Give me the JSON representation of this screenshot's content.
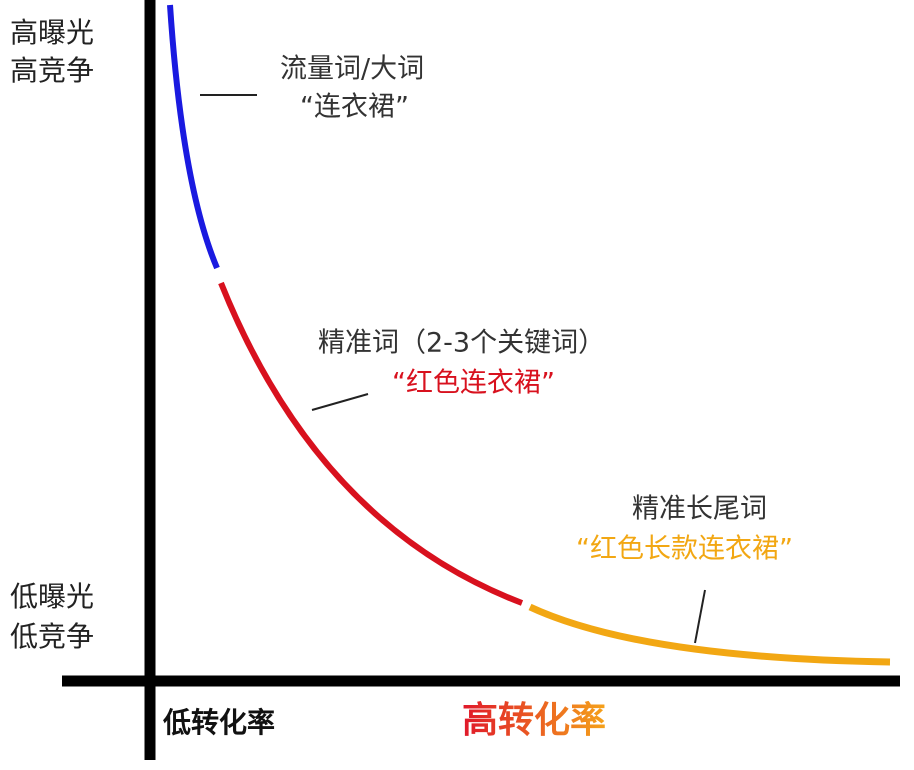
{
  "y_axis": {
    "top": [
      "高曝光",
      "高竞争"
    ],
    "bottom": [
      "低曝光",
      "低竞争"
    ]
  },
  "x_axis": {
    "low": "低转化率",
    "high": "高转化率"
  },
  "segments": [
    {
      "title": "流量词/大词",
      "example": "“连衣裙”"
    },
    {
      "title": "精准词（2-3个关键词）",
      "example": "“红色连衣裙”"
    },
    {
      "title": "精准长尾词",
      "example": "“红色长款连衣裙”"
    }
  ]
}
